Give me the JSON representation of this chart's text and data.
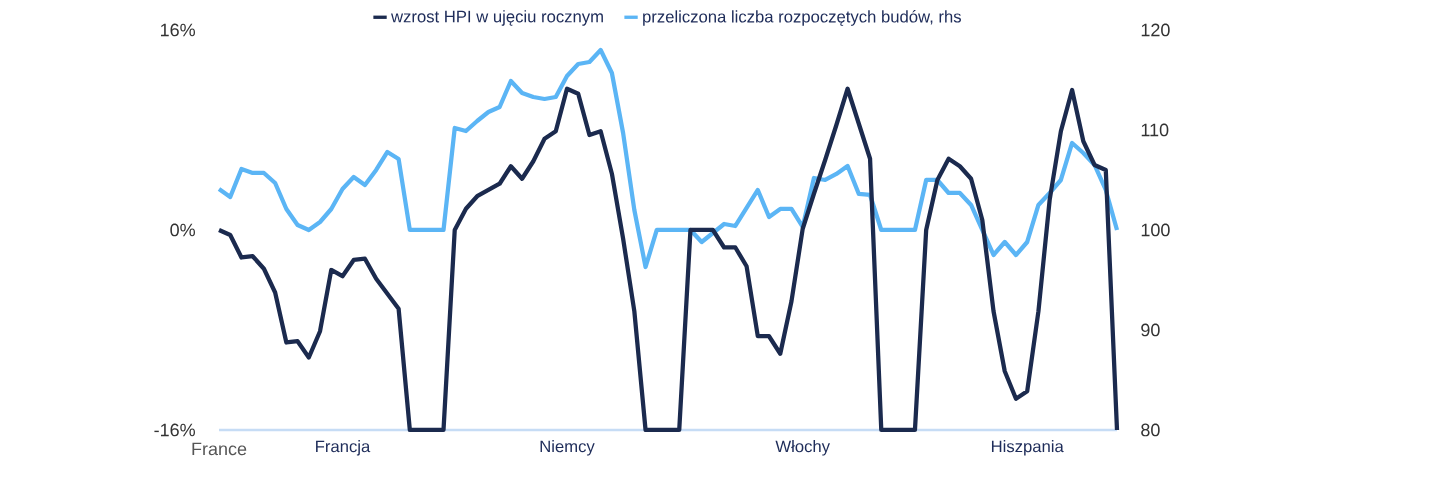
{
  "chart_data": {
    "type": "line",
    "categories": [
      null,
      null,
      null,
      null,
      null,
      null,
      null,
      null,
      null,
      null,
      null,
      "Francja",
      null,
      null,
      null,
      null,
      null,
      null,
      null,
      null,
      null,
      null,
      null,
      null,
      null,
      null,
      null,
      null,
      null,
      null,
      null,
      "Niemcy",
      null,
      null,
      null,
      null,
      null,
      null,
      null,
      null,
      null,
      null,
      null,
      null,
      null,
      null,
      null,
      null,
      null,
      null,
      null,
      null,
      "Włochy",
      null,
      null,
      null,
      null,
      null,
      null,
      null,
      null,
      null,
      null,
      null,
      null,
      null,
      null,
      null,
      null,
      null,
      null,
      null,
      "Hiszpania",
      null,
      null,
      null,
      null,
      null,
      null,
      null,
      null
    ],
    "series": [
      {
        "name": "przeliczona liczba rozpoczętych budów, rhs",
        "color": "#5bb5f5",
        "axis": "y2",
        "values": [
          104.1,
          103.3,
          106.1,
          105.7,
          105.7,
          104.7,
          102.1,
          100.5,
          100,
          100.8,
          102.1,
          104.1,
          105.3,
          104.5,
          106,
          107.8,
          107.1,
          100,
          100,
          100,
          100,
          110.2,
          109.9,
          110.9,
          111.8,
          112.3,
          114.9,
          113.7,
          113.3,
          113.1,
          113.3,
          115.4,
          116.6,
          116.8,
          118,
          115.7,
          109.7,
          102,
          96.3,
          100,
          100,
          100,
          100,
          98.8,
          99.7,
          100.6,
          100.4,
          102.2,
          104,
          101.3,
          102.1,
          102.1,
          100.3,
          105.2,
          105,
          105.6,
          106.4,
          103.6,
          103.5,
          100,
          100,
          100,
          100,
          105,
          105,
          103.7,
          103.7,
          102.5,
          100,
          97.5,
          98.8,
          97.5,
          98.8,
          102.5,
          103.7,
          105,
          108.7,
          107.7,
          106.5,
          104,
          100
        ]
      },
      {
        "name": "wzrost HPI w ujęciu rocznym",
        "color": "#1b2a4e",
        "values": [
          0,
          -0.4,
          -2.2,
          -2.1,
          -3.1,
          -5.0,
          -9.0,
          -8.9,
          -10.2,
          -8.1,
          -3.2,
          -3.7,
          -2.4,
          -2.3,
          -3.9,
          -5.1,
          -6.3,
          -16,
          -16,
          -16,
          -16,
          0,
          1.7,
          2.7,
          3.2,
          3.7,
          5.1,
          4.1,
          5.5,
          7.3,
          7.9,
          11.3,
          10.9,
          7.6,
          7.9,
          4.5,
          -0.7,
          -6.5,
          -16,
          -16,
          -16,
          -16,
          0,
          0,
          0,
          -1.4,
          -1.4,
          -2.9,
          -8.5,
          -8.5,
          -9.9,
          -5.7,
          0.1,
          2.9,
          5.6,
          8.4,
          11.3,
          8.5,
          5.7,
          -16,
          -16,
          -16,
          -16,
          0,
          4.0,
          5.7,
          5.1,
          4.1,
          0.8,
          -6.5,
          -11.3,
          -13.5,
          -12.9,
          -6.5,
          2.4,
          7.9,
          11.2,
          7.1,
          5.2,
          4.8,
          -16
        ]
      }
    ],
    "ylim": [
      -16,
      16
    ],
    "yticks": [
      {
        "value": -16,
        "label": "-16%"
      },
      {
        "value": 0,
        "label": "0%"
      },
      {
        "value": 16,
        "label": "16%"
      }
    ],
    "y2lim": [
      80,
      120
    ],
    "y2ticks": [
      80,
      90,
      100,
      110,
      120
    ],
    "legend": "top",
    "annotations": [
      "France"
    ]
  }
}
